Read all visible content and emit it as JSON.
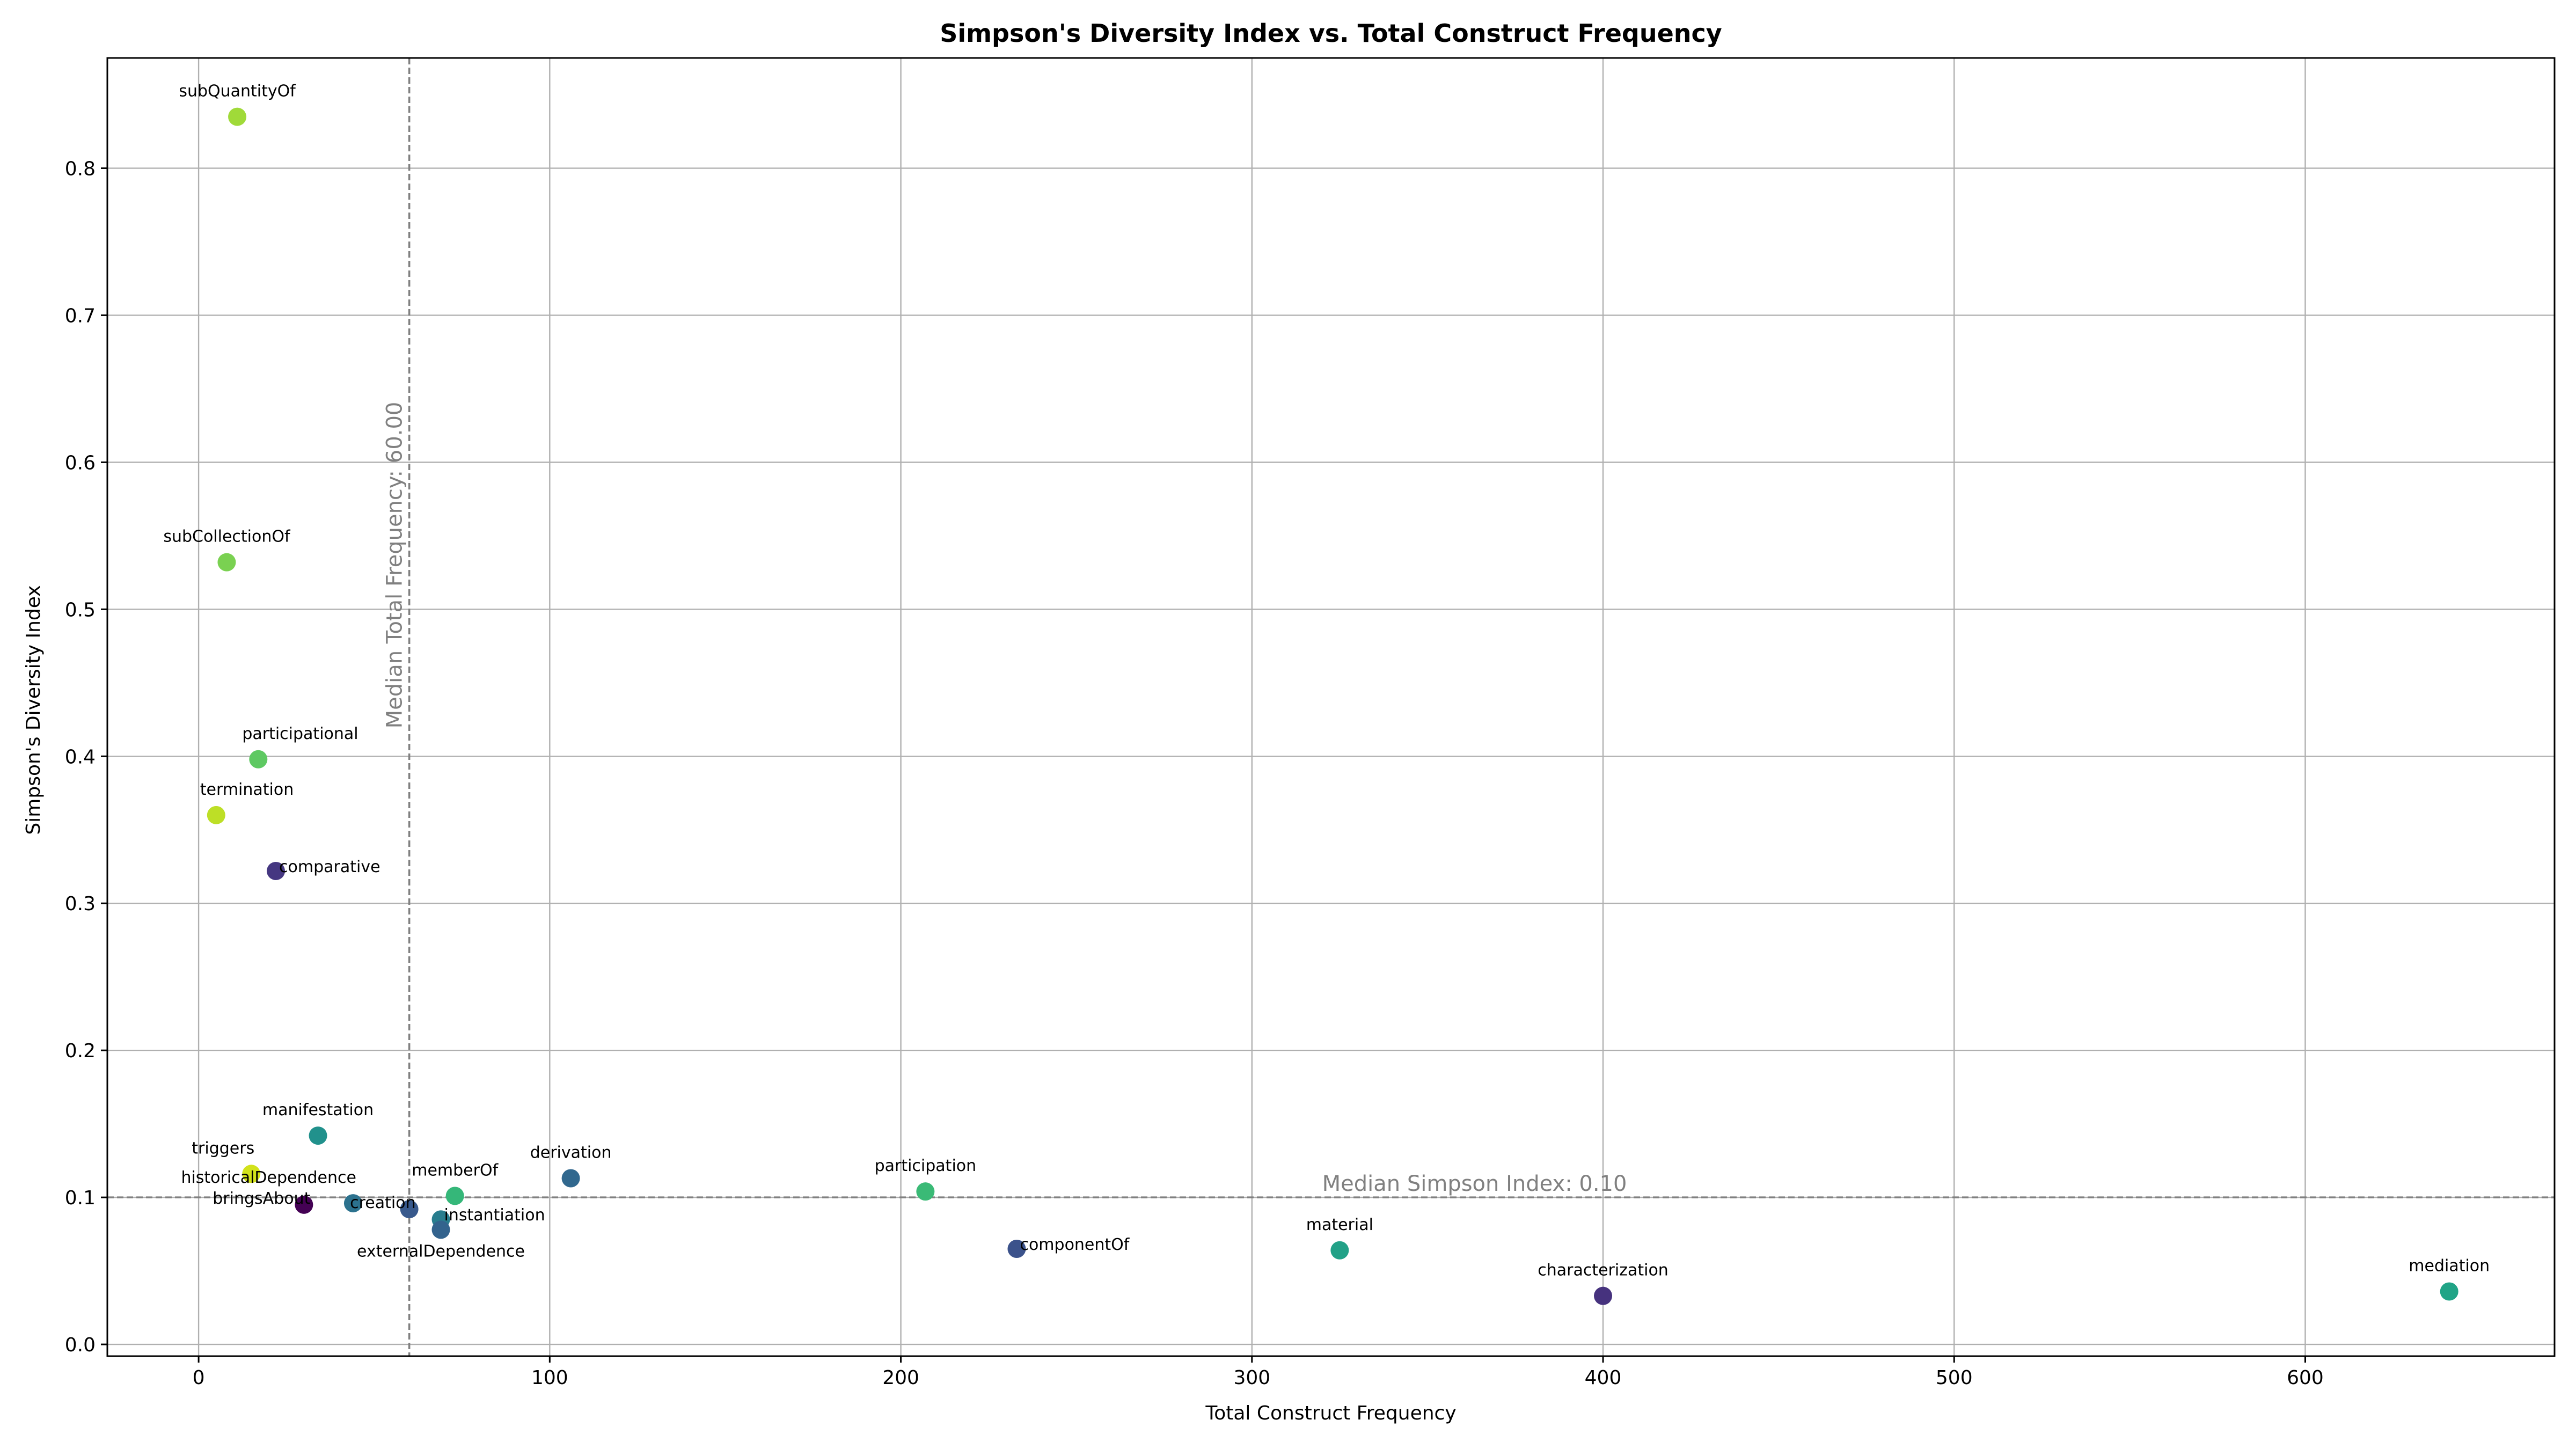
{
  "chart_data": {
    "type": "scatter",
    "title": "Simpson's Diversity Index vs. Total Construct Frequency",
    "xlabel": "Total Construct Frequency",
    "ylabel": "Simpson's Diversity Index",
    "xlim": [
      -26,
      671
    ],
    "ylim": [
      -0.008,
      0.875
    ],
    "xticks": [
      0,
      100,
      200,
      300,
      400,
      500,
      600
    ],
    "yticks": [
      0.0,
      0.1,
      0.2,
      0.3,
      0.4,
      0.5,
      0.6,
      0.7,
      0.8
    ],
    "xtick_labels": [
      "0",
      "100",
      "200",
      "300",
      "400",
      "500",
      "600"
    ],
    "ytick_labels": [
      "0.0",
      "0.1",
      "0.2",
      "0.3",
      "0.4",
      "0.5",
      "0.6",
      "0.7",
      "0.8"
    ],
    "grid": true,
    "median_x": {
      "value": 60,
      "label": "Median Total Frequency: 60.00"
    },
    "median_y": {
      "value": 0.1,
      "label": "Median Simpson Index: 0.10"
    },
    "points": [
      {
        "name": "subQuantityOf",
        "x": 11,
        "y": 0.835,
        "color": "#a0da39",
        "label_pos": "above"
      },
      {
        "name": "subCollectionOf",
        "x": 8,
        "y": 0.532,
        "color": "#7ad151",
        "label_pos": "above"
      },
      {
        "name": "participational",
        "x": 17,
        "y": 0.398,
        "color": "#5ec962",
        "label_pos": "above-right"
      },
      {
        "name": "termination",
        "x": 5,
        "y": 0.36,
        "color": "#bddf26",
        "label_pos": "above-right"
      },
      {
        "name": "comparative",
        "x": 22,
        "y": 0.322,
        "color": "#453781",
        "label_pos": "right"
      },
      {
        "name": "manifestation",
        "x": 34,
        "y": 0.142,
        "color": "#21918c",
        "label_pos": "above"
      },
      {
        "name": "triggers",
        "x": 15,
        "y": 0.116,
        "color": "#d2e21b",
        "label_pos": "above-left"
      },
      {
        "name": "historicalDependence",
        "x": 44,
        "y": 0.096,
        "color": "#2c728e",
        "label_pos": "above-left"
      },
      {
        "name": "bringsAbout",
        "x": 30,
        "y": 0.095,
        "color": "#440154",
        "label_pos": "left"
      },
      {
        "name": "creation",
        "x": 60,
        "y": 0.092,
        "color": "#38598c",
        "label_pos": "left"
      },
      {
        "name": "memberOf",
        "x": 73,
        "y": 0.101,
        "color": "#35b779",
        "label_pos": "above"
      },
      {
        "name": "instantiation",
        "x": 69,
        "y": 0.085,
        "color": "#287d8e",
        "label_pos": "right"
      },
      {
        "name": "externalDependence",
        "x": 69,
        "y": 0.078,
        "color": "#33638d",
        "label_pos": "below"
      },
      {
        "name": "derivation",
        "x": 106,
        "y": 0.113,
        "color": "#31688e",
        "label_pos": "above"
      },
      {
        "name": "participation",
        "x": 207,
        "y": 0.104,
        "color": "#3aba76",
        "label_pos": "above"
      },
      {
        "name": "componentOf",
        "x": 233,
        "y": 0.065,
        "color": "#3b528b",
        "label_pos": "right"
      },
      {
        "name": "material",
        "x": 325,
        "y": 0.064,
        "color": "#22a187",
        "label_pos": "above"
      },
      {
        "name": "characterization",
        "x": 400,
        "y": 0.033,
        "color": "#46327e",
        "label_pos": "above"
      },
      {
        "name": "mediation",
        "x": 641,
        "y": 0.036,
        "color": "#20a486",
        "label_pos": "above"
      }
    ]
  }
}
